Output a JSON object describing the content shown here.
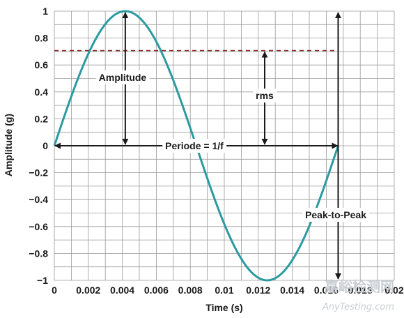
{
  "chart_data": {
    "type": "line",
    "xlabel": "Time (s)",
    "ylabel": "Amplitude (g)",
    "xlim": [
      0,
      0.02
    ],
    "ylim": [
      -1,
      1
    ],
    "grid": true,
    "x_ticks": [
      "0",
      "0.002",
      "0.004",
      "0.006",
      "0.008",
      "0.01",
      "0.012",
      "0.014",
      "0.016",
      "0.018",
      "0.02"
    ],
    "y_ticks": [
      "1",
      "0.8",
      "0.6",
      "0.4",
      "0.2",
      "0",
      "−0.2",
      "−0.4",
      "−0.6",
      "−0.8",
      "−1"
    ],
    "series": [
      {
        "color": "#2b9aa0",
        "x": [
          0,
          0.001,
          0.002,
          0.003,
          0.004,
          0.005,
          0.006,
          0.007,
          0.008,
          0.009,
          0.01,
          0.011,
          0.012,
          0.013,
          0.014,
          0.015,
          0.016,
          0.0167
        ],
        "y": [
          0,
          0.37,
          0.69,
          0.91,
          1.0,
          0.94,
          0.73,
          0.42,
          0.06,
          -0.31,
          -0.64,
          -0.88,
          -0.99,
          -0.97,
          -0.82,
          -0.55,
          -0.21,
          0
        ]
      }
    ],
    "rms_line": {
      "y": 0.707,
      "color": "#8b2323"
    },
    "period_end": 0.0167,
    "annotations": {
      "amplitude": "Amplitude",
      "rms": "rms",
      "period": "Periode = 1/f",
      "peak_to_peak": "Peak-to-Peak"
    }
  },
  "watermark": {
    "line1": "嘉峪检测网",
    "line2": "AnyTesting.com"
  }
}
